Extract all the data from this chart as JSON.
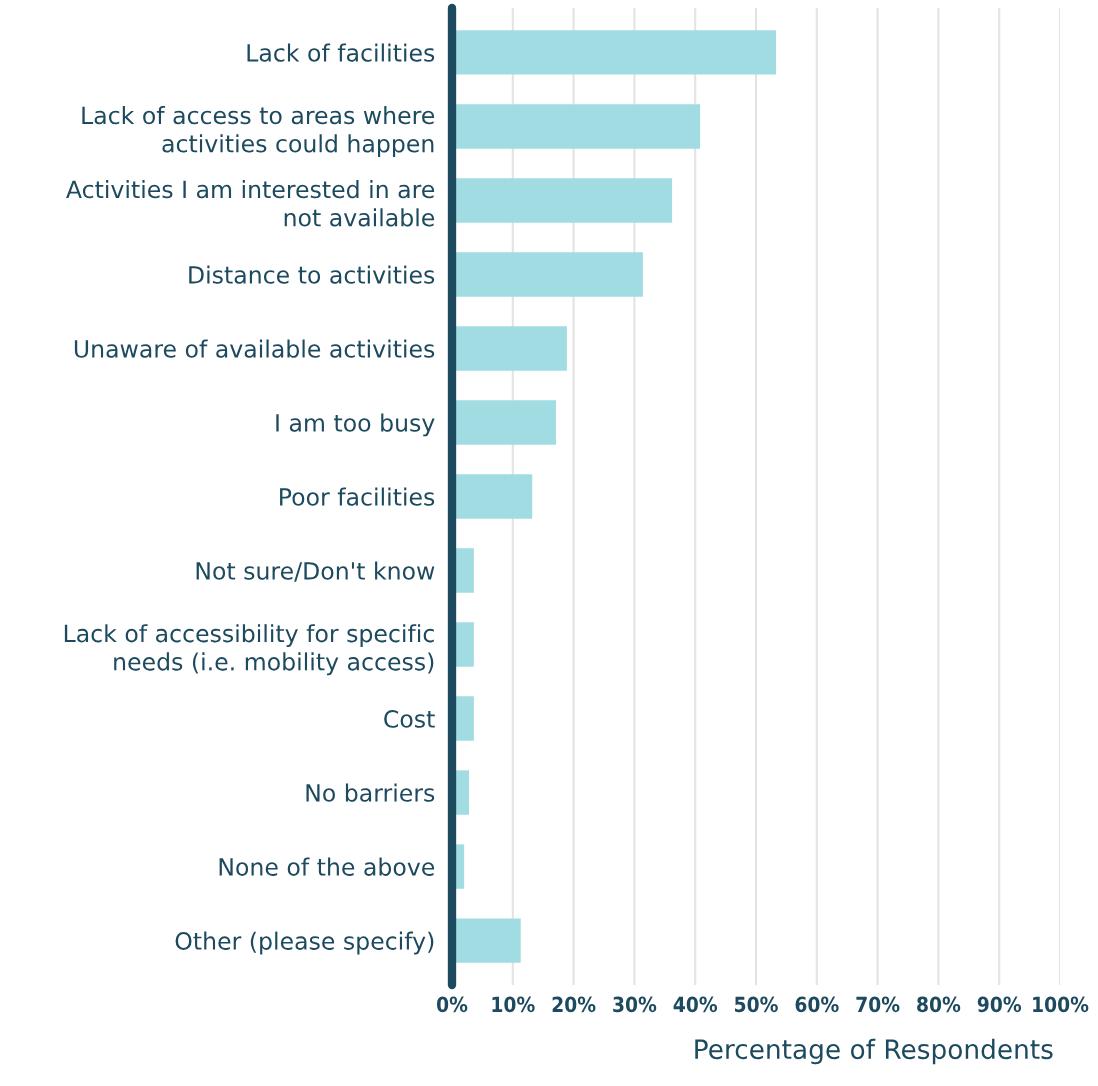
{
  "chart_data": {
    "type": "bar",
    "orientation": "horizontal",
    "xlabel": "Percentage of Respondents",
    "categories": [
      "Lack of facilities",
      "Lack of access to areas where\nactivities could happen",
      "Activities I am interested in are\nnot available",
      "Distance to activities",
      "Unaware of available activities",
      "I am too busy",
      "Poor facilities",
      "Not sure/Don't know",
      "Lack of accessibility for specific\nneeds (i.e. mobility access)",
      "Cost",
      "No barriers",
      "None of the above",
      "Other (please specify)"
    ],
    "values": [
      53.3,
      40.8,
      36.2,
      31.4,
      18.9,
      17.1,
      13.2,
      3.6,
      3.6,
      3.6,
      2.8,
      2.0,
      11.3
    ],
    "color": "#a2dce3",
    "xlim": [
      0,
      100
    ],
    "xticks": [
      {
        "value": 0,
        "label": "0%"
      },
      {
        "value": 10,
        "label": "10%"
      },
      {
        "value": 20,
        "label": "20%"
      },
      {
        "value": 30,
        "label": "30%"
      },
      {
        "value": 40,
        "label": "40%"
      },
      {
        "value": 50,
        "label": "50%"
      },
      {
        "value": 60,
        "label": "60%"
      },
      {
        "value": 70,
        "label": "70%"
      },
      {
        "value": 80,
        "label": "80%"
      },
      {
        "value": 90,
        "label": "90%"
      },
      {
        "value": 100,
        "label": "100%"
      }
    ],
    "grid": "x",
    "legend": false
  }
}
